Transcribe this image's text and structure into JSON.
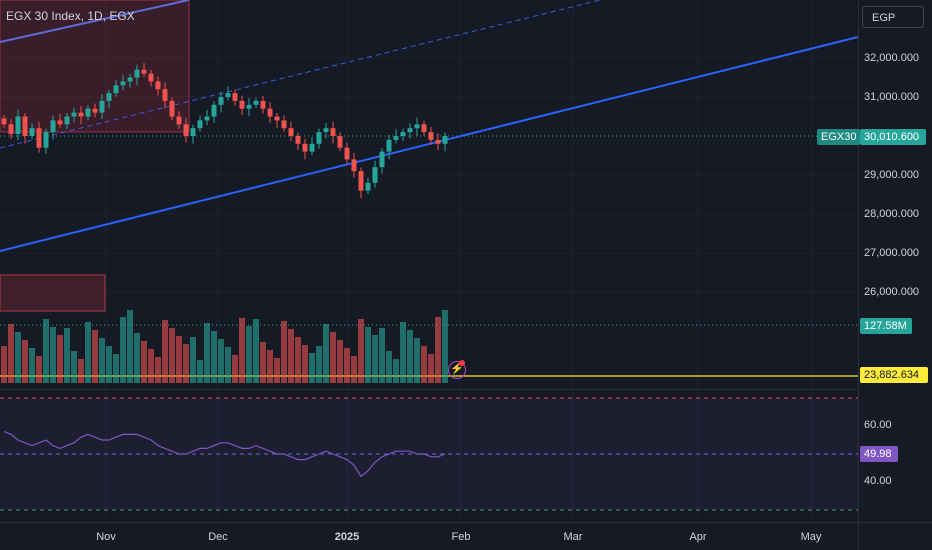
{
  "header": {
    "title": "EGX 30 Index, 1D, EGX",
    "currency_button": "EGP"
  },
  "price_axis": {
    "labels": [
      "32,000.000",
      "31,000.000",
      "30,000.000",
      "29,000.000",
      "28,000.000",
      "27,000.000",
      "26,000.000"
    ]
  },
  "rsi_axis": {
    "labels": [
      "60.00",
      "40.00"
    ]
  },
  "time_axis": {
    "labels": [
      "Nov",
      "Dec",
      "2025",
      "Feb",
      "Mar",
      "Apr",
      "May"
    ]
  },
  "tags": {
    "symbol": "EGX30",
    "last_price": "30,010.600",
    "volume": "127.58M",
    "horizontal_line": "23,882.634",
    "rsi": "49.98"
  },
  "colors": {
    "background": "#161a25",
    "up": "#26a69a",
    "down": "#ef5350",
    "trendline": "#2962ff",
    "horizontal_line": "#ffeb3b",
    "rsi_line": "#7e57c2"
  },
  "chart_data": {
    "type": "candlestick",
    "timeframe": "1D",
    "close_points": [
      30300,
      30050,
      30500,
      30000,
      30200,
      29700,
      30100,
      30400,
      30300,
      30500,
      30600,
      30500,
      30700,
      30600,
      30900,
      31100,
      31300,
      31400,
      31500,
      31700,
      31600,
      31400,
      31200,
      30900,
      30500,
      30300,
      30000,
      30200,
      30400,
      30500,
      30800,
      31000,
      31100,
      30900,
      30700,
      30800,
      30900,
      30700,
      30500,
      30400,
      30200,
      30000,
      29800,
      29600,
      29800,
      30100,
      30200,
      30000,
      29700,
      29400,
      29100,
      28600,
      28800,
      29200,
      29600,
      29900,
      30000,
      30100,
      30200,
      30300,
      30100,
      29900,
      29800,
      30000
    ],
    "last_price": 30010.6,
    "volume_last": "127.58M",
    "horizontal_level": 23882.634,
    "rsi_last": 49.98,
    "rsi_levels": [
      70,
      50,
      30
    ]
  },
  "icons": {
    "alert": "lightning-icon"
  }
}
